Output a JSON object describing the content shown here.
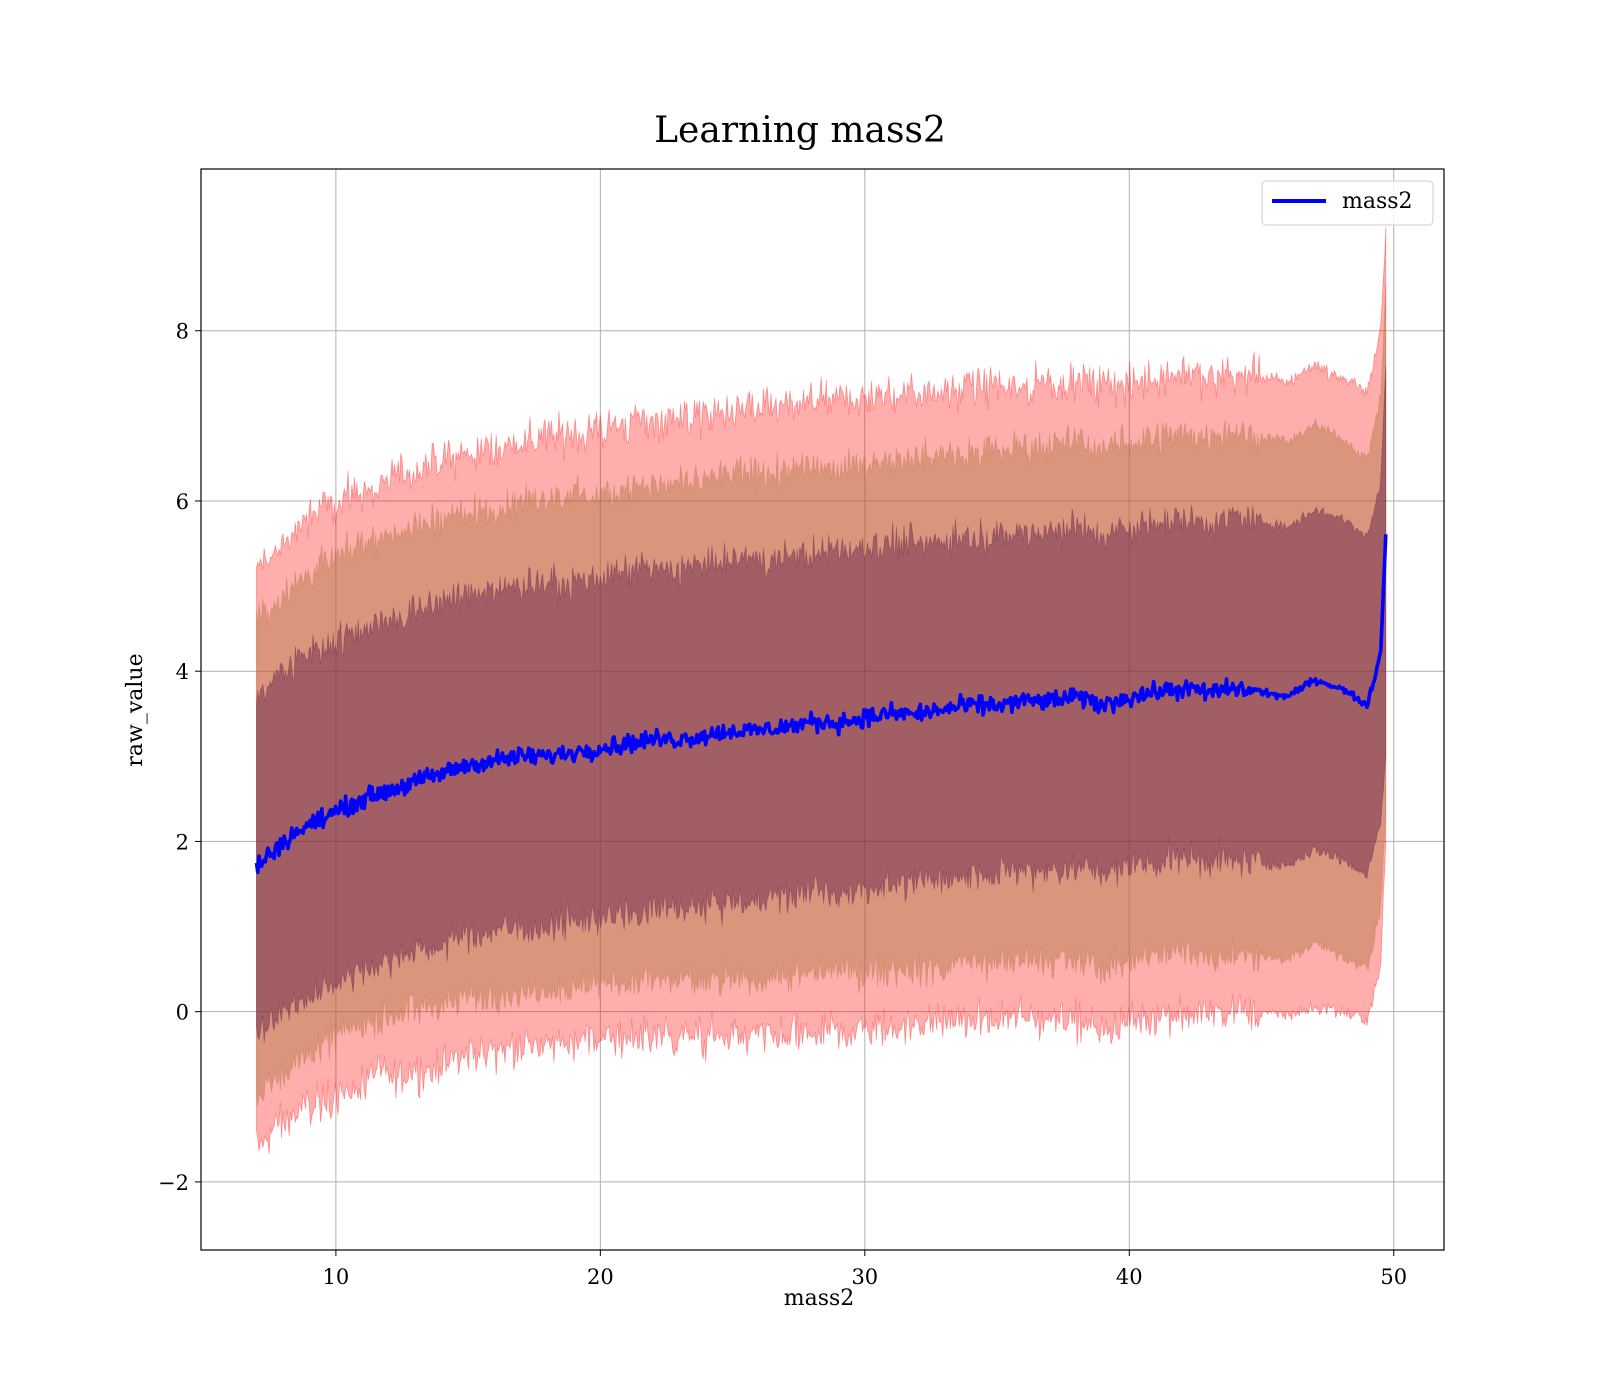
{
  "chart_data": {
    "type": "line",
    "title": "Learning mass2",
    "xlabel": "mass2",
    "ylabel": "raw_value",
    "xlim": [
      4.9,
      51.9
    ],
    "ylim": [
      -2.8,
      9.9
    ],
    "xticks": [
      10,
      20,
      30,
      40,
      50
    ],
    "yticks": [
      -2,
      0,
      2,
      4,
      6,
      8
    ],
    "xtick_labels": [
      "10",
      "20",
      "30",
      "40",
      "50"
    ],
    "ytick_labels": [
      "−2",
      "0",
      "2",
      "4",
      "6",
      "8"
    ],
    "grid": true,
    "legend": {
      "placement": "top-right",
      "entries": [
        "mass2"
      ]
    },
    "colors": {
      "line": "#0000ff",
      "band": "#ff0000",
      "inner": "#5a1a4a",
      "mid": "#b07840"
    },
    "series": [
      {
        "name": "mass2",
        "x": [
          7,
          8,
          9,
          10,
          11,
          12,
          13,
          14,
          15,
          16,
          17,
          18,
          19,
          20,
          21,
          22,
          23,
          24,
          25,
          26,
          27,
          28,
          29,
          30,
          31,
          32,
          33,
          34,
          35,
          36,
          37,
          38,
          39,
          40,
          41,
          42,
          43,
          44,
          45,
          46,
          47,
          48,
          49,
          49.5,
          49.7
        ],
        "y": [
          1.7,
          2.0,
          2.2,
          2.35,
          2.5,
          2.6,
          2.7,
          2.8,
          2.9,
          2.95,
          3.0,
          3.0,
          3.05,
          3.1,
          3.15,
          3.2,
          3.2,
          3.25,
          3.3,
          3.3,
          3.35,
          3.4,
          3.4,
          3.45,
          3.5,
          3.5,
          3.55,
          3.6,
          3.6,
          3.65,
          3.65,
          3.7,
          3.6,
          3.7,
          3.75,
          3.8,
          3.75,
          3.8,
          3.75,
          3.7,
          3.9,
          3.8,
          3.6,
          4.2,
          5.6
        ]
      }
    ],
    "bands": [
      {
        "lower": [
          -1.6,
          -1.3,
          -1.1,
          -1.0,
          -0.85,
          -0.75,
          -0.7,
          -0.6,
          -0.5,
          -0.45,
          -0.4,
          -0.4,
          -0.35,
          -0.3,
          -0.3,
          -0.3,
          -0.3,
          -0.3,
          -0.3,
          -0.3,
          -0.3,
          -0.25,
          -0.25,
          -0.2,
          -0.2,
          -0.15,
          -0.15,
          -0.1,
          -0.1,
          -0.1,
          -0.05,
          -0.1,
          -0.2,
          -0.1,
          -0.05,
          0.0,
          -0.05,
          0.0,
          0.0,
          -0.05,
          0.05,
          0.0,
          -0.1,
          0.5,
          2.0
        ],
        "upper": [
          5.2,
          5.5,
          5.8,
          6.0,
          6.1,
          6.25,
          6.35,
          6.45,
          6.55,
          6.6,
          6.7,
          6.75,
          6.8,
          6.85,
          6.9,
          6.95,
          7.0,
          7.0,
          7.05,
          7.1,
          7.1,
          7.15,
          7.2,
          7.2,
          7.25,
          7.3,
          7.3,
          7.35,
          7.35,
          7.35,
          7.4,
          7.4,
          7.35,
          7.35,
          7.45,
          7.5,
          7.45,
          7.5,
          7.45,
          7.4,
          7.6,
          7.45,
          7.3,
          8.0,
          9.2
        ]
      },
      {
        "lower": [
          -1.0,
          -0.7,
          -0.5,
          -0.3,
          -0.15,
          -0.05,
          0.0,
          0.1,
          0.15,
          0.2,
          0.25,
          0.3,
          0.3,
          0.3,
          0.35,
          0.35,
          0.35,
          0.35,
          0.4,
          0.4,
          0.4,
          0.45,
          0.45,
          0.45,
          0.5,
          0.5,
          0.5,
          0.55,
          0.55,
          0.6,
          0.6,
          0.6,
          0.5,
          0.6,
          0.65,
          0.7,
          0.65,
          0.7,
          0.65,
          0.6,
          0.8,
          0.65,
          0.5,
          1.2,
          2.4
        ],
        "upper": [
          4.6,
          4.9,
          5.15,
          5.35,
          5.5,
          5.6,
          5.7,
          5.8,
          5.85,
          5.9,
          5.95,
          6.0,
          6.05,
          6.1,
          6.15,
          6.2,
          6.2,
          6.25,
          6.3,
          6.3,
          6.35,
          6.4,
          6.4,
          6.45,
          6.5,
          6.5,
          6.55,
          6.6,
          6.6,
          6.65,
          6.65,
          6.7,
          6.6,
          6.7,
          6.75,
          6.8,
          6.75,
          6.8,
          6.75,
          6.7,
          6.9,
          6.75,
          6.5,
          7.2,
          8.5
        ]
      },
      {
        "lower": [
          -0.3,
          0.0,
          0.2,
          0.35,
          0.5,
          0.6,
          0.7,
          0.8,
          0.9,
          0.95,
          1.0,
          1.0,
          1.05,
          1.1,
          1.15,
          1.2,
          1.2,
          1.25,
          1.3,
          1.3,
          1.35,
          1.4,
          1.4,
          1.45,
          1.5,
          1.5,
          1.55,
          1.6,
          1.6,
          1.65,
          1.65,
          1.7,
          1.6,
          1.7,
          1.75,
          1.8,
          1.75,
          1.8,
          1.75,
          1.7,
          1.9,
          1.8,
          1.6,
          2.2,
          3.0
        ],
        "upper": [
          3.7,
          4.0,
          4.2,
          4.35,
          4.5,
          4.6,
          4.7,
          4.8,
          4.9,
          4.95,
          5.0,
          5.0,
          5.05,
          5.1,
          5.15,
          5.2,
          5.2,
          5.25,
          5.3,
          5.3,
          5.35,
          5.4,
          5.4,
          5.45,
          5.5,
          5.5,
          5.55,
          5.6,
          5.6,
          5.65,
          5.65,
          5.7,
          5.6,
          5.7,
          5.75,
          5.8,
          5.75,
          5.8,
          5.75,
          5.7,
          5.9,
          5.8,
          5.6,
          6.2,
          7.6
        ]
      }
    ]
  }
}
